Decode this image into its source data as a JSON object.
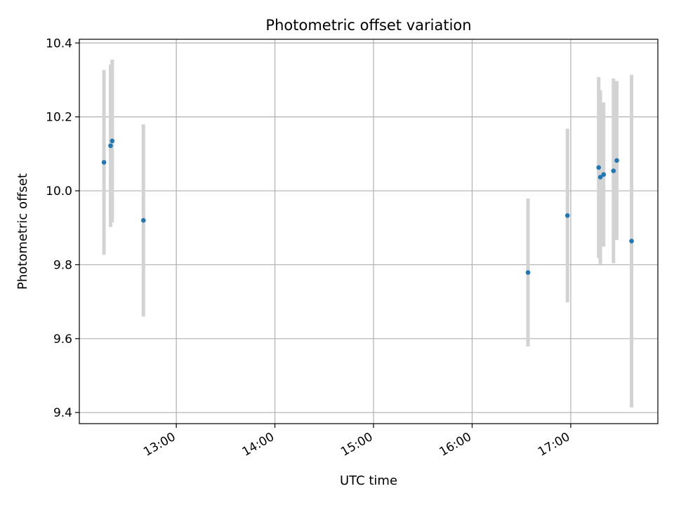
{
  "chart_data": {
    "type": "scatter",
    "title": "Photometric offset variation",
    "xlabel": "UTC time",
    "ylabel": "Photometric offset",
    "x_ticks": [
      "13:00",
      "14:00",
      "15:00",
      "16:00",
      "17:00"
    ],
    "y_ticks": [
      "9.4",
      "9.6",
      "9.8",
      "10.0",
      "10.2",
      "10.4"
    ],
    "xlim": [
      "12:01",
      "17:53"
    ],
    "ylim": [
      9.37,
      10.41
    ],
    "grid": true,
    "colors": {
      "point": "#1f77b4",
      "errorbar": "#d3d3d3",
      "grid": "#b0b0b0"
    },
    "series": [
      {
        "points": [
          {
            "x": "12:16",
            "y": 10.077,
            "yerr": 0.25
          },
          {
            "x": "12:20",
            "y": 10.122,
            "yerr": 0.22
          },
          {
            "x": "12:21",
            "y": 10.135,
            "yerr": 0.22
          },
          {
            "x": "12:40",
            "y": 9.92,
            "yerr": 0.26
          },
          {
            "x": "16:34",
            "y": 9.779,
            "yerr": 0.2
          },
          {
            "x": "16:58",
            "y": 9.933,
            "yerr": 0.235
          },
          {
            "x": "17:17",
            "y": 10.063,
            "yerr": 0.245
          },
          {
            "x": "17:18",
            "y": 10.037,
            "yerr": 0.235
          },
          {
            "x": "17:20",
            "y": 10.044,
            "yerr": 0.195
          },
          {
            "x": "17:26",
            "y": 10.054,
            "yerr": 0.25
          },
          {
            "x": "17:28",
            "y": 10.082,
            "yerr": 0.215
          },
          {
            "x": "17:37",
            "y": 9.864,
            "yerr": 0.45
          }
        ]
      }
    ]
  }
}
